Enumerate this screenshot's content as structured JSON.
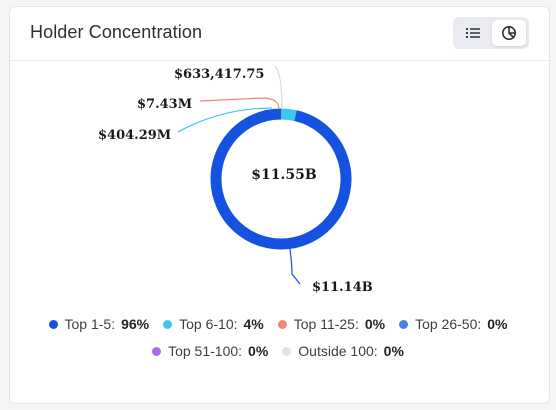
{
  "card": {
    "title": "Holder Concentration",
    "toggle": {
      "list_icon": "list-icon",
      "chart_icon": "pie-chart-icon",
      "active": "chart"
    }
  },
  "chart_data": {
    "type": "pie",
    "center_label": "$11.55B",
    "slices": [
      {
        "name": "Top 1-5",
        "value": 11.14,
        "label": "$11.14B",
        "color": "#1552e0"
      },
      {
        "name": "Top 6-10",
        "value": 0.40429,
        "label": "$404.29M",
        "color": "#3cc7ef"
      },
      {
        "name": "Top 11-25",
        "value": 0.00743,
        "label": "$7.43M",
        "color": "#f08878"
      },
      {
        "name": "Top 26-50",
        "value": 0.000633,
        "label": "$633,417.75",
        "color": "#d9dbe0"
      }
    ]
  },
  "legend": {
    "row1": [
      {
        "label": "Top 1-5:",
        "value": "96%",
        "color": "#1552e0"
      },
      {
        "label": "Top 6-10:",
        "value": "4%",
        "color": "#3cc7ef"
      },
      {
        "label": "Top 11-25:",
        "value": "0%",
        "color": "#f08878"
      },
      {
        "label": "Top 26-50:",
        "value": "0%",
        "color": "#4a7fe0"
      }
    ],
    "row2": [
      {
        "label": "Top 51-100:",
        "value": "0%",
        "color": "#a86af0"
      },
      {
        "label": "Outside 100:",
        "value": "0%",
        "color": "#dfe1e6"
      }
    ]
  }
}
